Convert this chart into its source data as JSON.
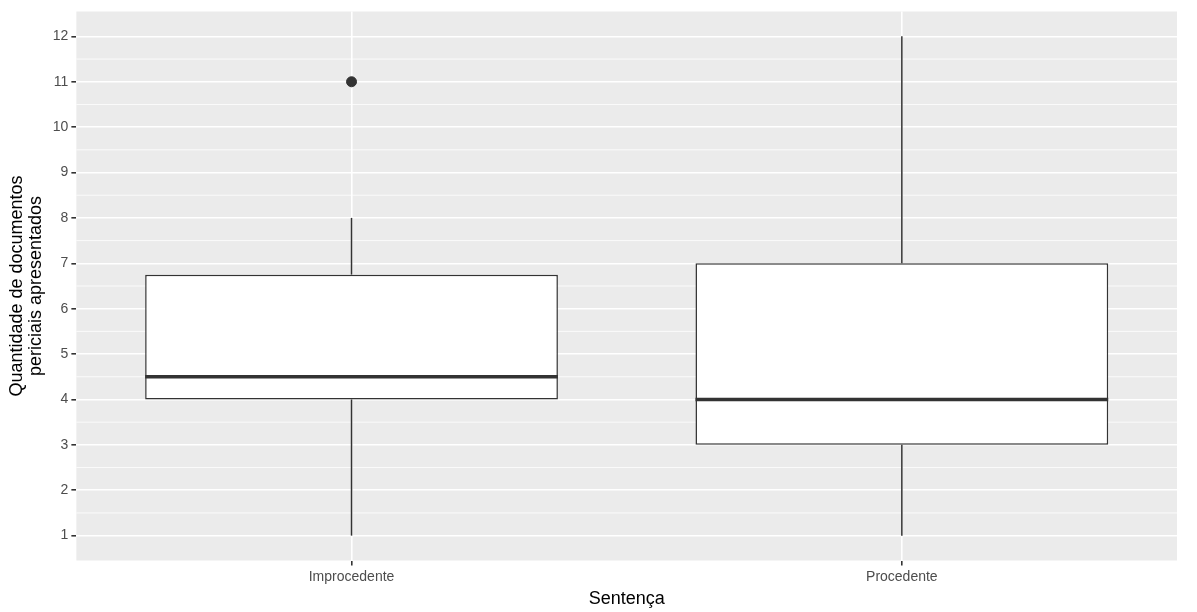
{
  "chart_data": {
    "type": "box",
    "xlabel": "Sentença",
    "ylabel": "Quantidade de documentos\npericiais apresentados",
    "categories": [
      "Improcedente",
      "Procedente"
    ],
    "boxes": [
      {
        "low": 1,
        "q1": 4,
        "median": 4.5,
        "q3": 6.75,
        "high": 8,
        "outliers": [
          11
        ]
      },
      {
        "low": 1,
        "q1": 3,
        "median": 4,
        "q3": 7,
        "high": 12
      }
    ],
    "ylim": [
      0.45,
      12.55
    ],
    "yticks": [
      1,
      2,
      3,
      4,
      5,
      6,
      7,
      8,
      9,
      10,
      11,
      12
    ],
    "grid": true,
    "legend": false
  }
}
